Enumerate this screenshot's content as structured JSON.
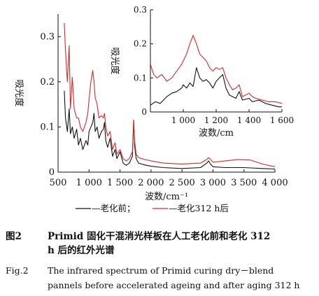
{
  "chart_data": [
    {
      "type": "line",
      "xlabel": "波数/cm⁻¹",
      "ylabel": "吸光度",
      "xlim": [
        500,
        4000
      ],
      "ylim": [
        0,
        0.35
      ],
      "xticks": [
        "500",
        "1 000",
        "1 500",
        "2 000",
        "2 500",
        "3 000",
        "3 500",
        "4 000"
      ],
      "yticks": [
        "0",
        "0.1",
        "0.2",
        "0.3"
      ],
      "grid": false,
      "legend_position": "bottom",
      "series": [
        {
          "name": "老化前",
          "color": "#111111",
          "points": [
            [
              600,
              0.18
            ],
            [
              620,
              0.12
            ],
            [
              650,
              0.09
            ],
            [
              680,
              0.14
            ],
            [
              700,
              0.085
            ],
            [
              730,
              0.1
            ],
            [
              760,
              0.075
            ],
            [
              800,
              0.095
            ],
            [
              830,
              0.06
            ],
            [
              860,
              0.075
            ],
            [
              900,
              0.05
            ],
            [
              950,
              0.07
            ],
            [
              980,
              0.06
            ],
            [
              1000,
              0.09
            ],
            [
              1030,
              0.1
            ],
            [
              1060,
              0.11
            ],
            [
              1080,
              0.13
            ],
            [
              1100,
              0.09
            ],
            [
              1130,
              0.1
            ],
            [
              1160,
              0.075
            ],
            [
              1200,
              0.09
            ],
            [
              1230,
              0.095
            ],
            [
              1250,
              0.11
            ],
            [
              1270,
              0.07
            ],
            [
              1300,
              0.055
            ],
            [
              1340,
              0.075
            ],
            [
              1380,
              0.035
            ],
            [
              1420,
              0.05
            ],
            [
              1450,
              0.03
            ],
            [
              1500,
              0.045
            ],
            [
              1550,
              0.02
            ],
            [
              1600,
              0.015
            ],
            [
              1650,
              0.02
            ],
            [
              1700,
              0.035
            ],
            [
              1720,
              0.115
            ],
            [
              1735,
              0.06
            ],
            [
              1760,
              0.03
            ],
            [
              1800,
              0.02
            ],
            [
              1900,
              0.016
            ],
            [
              2000,
              0.013
            ],
            [
              2200,
              0.01
            ],
            [
              2500,
              0.008
            ],
            [
              2800,
              0.01
            ],
            [
              2900,
              0.02
            ],
            [
              2930,
              0.025
            ],
            [
              2960,
              0.018
            ],
            [
              3000,
              0.012
            ],
            [
              3200,
              0.01
            ],
            [
              3500,
              0.01
            ],
            [
              3800,
              0.008
            ],
            [
              4000,
              0.007
            ]
          ]
        },
        {
          "name": "老化312 h后",
          "color": "#d42a2a",
          "points": [
            [
              600,
              0.33
            ],
            [
              620,
              0.27
            ],
            [
              650,
              0.2
            ],
            [
              680,
              0.28
            ],
            [
              700,
              0.14
            ],
            [
              730,
              0.21
            ],
            [
              760,
              0.14
            ],
            [
              800,
              0.12
            ],
            [
              830,
              0.12
            ],
            [
              860,
              0.1
            ],
            [
              900,
              0.09
            ],
            [
              950,
              0.11
            ],
            [
              980,
              0.13
            ],
            [
              1000,
              0.16
            ],
            [
              1030,
              0.2
            ],
            [
              1060,
              0.225
            ],
            [
              1080,
              0.2
            ],
            [
              1100,
              0.165
            ],
            [
              1130,
              0.15
            ],
            [
              1160,
              0.12
            ],
            [
              1200,
              0.125
            ],
            [
              1230,
              0.12
            ],
            [
              1250,
              0.13
            ],
            [
              1270,
              0.1
            ],
            [
              1300,
              0.08
            ],
            [
              1340,
              0.09
            ],
            [
              1380,
              0.05
            ],
            [
              1420,
              0.065
            ],
            [
              1450,
              0.04
            ],
            [
              1500,
              0.05
            ],
            [
              1550,
              0.03
            ],
            [
              1600,
              0.025
            ],
            [
              1650,
              0.03
            ],
            [
              1700,
              0.045
            ],
            [
              1720,
              0.115
            ],
            [
              1735,
              0.07
            ],
            [
              1760,
              0.04
            ],
            [
              1800,
              0.032
            ],
            [
              1900,
              0.028
            ],
            [
              2000,
              0.025
            ],
            [
              2200,
              0.02
            ],
            [
              2500,
              0.018
            ],
            [
              2800,
              0.02
            ],
            [
              2900,
              0.028
            ],
            [
              2930,
              0.032
            ],
            [
              2960,
              0.028
            ],
            [
              3000,
              0.022
            ],
            [
              3200,
              0.025
            ],
            [
              3400,
              0.028
            ],
            [
              3600,
              0.027
            ],
            [
              3800,
              0.018
            ],
            [
              4000,
              0.012
            ]
          ]
        }
      ]
    },
    {
      "type": "line",
      "inset": true,
      "xlabel": "波数/cm",
      "ylabel": "吸光度",
      "xlim": [
        800,
        1600
      ],
      "ylim": [
        0,
        0.3
      ],
      "xticks": [
        "1 000",
        "1 200",
        "1 400",
        "1 600"
      ],
      "yticks": [
        "0",
        "0.1",
        "0.2",
        "0.3"
      ],
      "grid": false,
      "series": [
        {
          "name": "老化前",
          "color": "#111111",
          "points": [
            [
              800,
              0.02
            ],
            [
              830,
              0.03
            ],
            [
              860,
              0.025
            ],
            [
              900,
              0.045
            ],
            [
              930,
              0.055
            ],
            [
              960,
              0.06
            ],
            [
              990,
              0.07
            ],
            [
              1000,
              0.08
            ],
            [
              1020,
              0.07
            ],
            [
              1040,
              0.085
            ],
            [
              1060,
              0.075
            ],
            [
              1080,
              0.13
            ],
            [
              1100,
              0.1
            ],
            [
              1120,
              0.09
            ],
            [
              1140,
              0.095
            ],
            [
              1160,
              0.085
            ],
            [
              1180,
              0.07
            ],
            [
              1200,
              0.09
            ],
            [
              1220,
              0.1
            ],
            [
              1240,
              0.11
            ],
            [
              1260,
              0.07
            ],
            [
              1280,
              0.05
            ],
            [
              1300,
              0.045
            ],
            [
              1320,
              0.04
            ],
            [
              1340,
              0.06
            ],
            [
              1360,
              0.035
            ],
            [
              1400,
              0.04
            ],
            [
              1420,
              0.03
            ],
            [
              1460,
              0.035
            ],
            [
              1500,
              0.025
            ],
            [
              1540,
              0.02
            ],
            [
              1580,
              0.015
            ],
            [
              1600,
              0.015
            ]
          ]
        },
        {
          "name": "老化312 h后",
          "color": "#d42a2a",
          "points": [
            [
              800,
              0.14
            ],
            [
              820,
              0.11
            ],
            [
              840,
              0.1
            ],
            [
              870,
              0.11
            ],
            [
              900,
              0.09
            ],
            [
              930,
              0.1
            ],
            [
              960,
              0.12
            ],
            [
              990,
              0.14
            ],
            [
              1000,
              0.15
            ],
            [
              1020,
              0.17
            ],
            [
              1040,
              0.2
            ],
            [
              1060,
              0.225
            ],
            [
              1080,
              0.2
            ],
            [
              1100,
              0.17
            ],
            [
              1120,
              0.16
            ],
            [
              1140,
              0.15
            ],
            [
              1160,
              0.13
            ],
            [
              1180,
              0.12
            ],
            [
              1200,
              0.13
            ],
            [
              1220,
              0.125
            ],
            [
              1240,
              0.13
            ],
            [
              1260,
              0.1
            ],
            [
              1280,
              0.08
            ],
            [
              1300,
              0.065
            ],
            [
              1320,
              0.07
            ],
            [
              1340,
              0.08
            ],
            [
              1360,
              0.045
            ],
            [
              1380,
              0.05
            ],
            [
              1400,
              0.055
            ],
            [
              1420,
              0.045
            ],
            [
              1440,
              0.04
            ],
            [
              1480,
              0.035
            ],
            [
              1520,
              0.03
            ],
            [
              1560,
              0.03
            ],
            [
              1600,
              0.025
            ]
          ]
        }
      ]
    }
  ],
  "legend": {
    "before_label": "—老化前；",
    "after_label": "—老化312 h后"
  },
  "caption": {
    "zh_num": "图2",
    "zh_line1": "Primid 固化干混消光样板在人工老化前和老化 312",
    "zh_line2": "h 后的红外光谱",
    "en_num": "Fig.2",
    "en_line1": "The infrared spectrum of Primid curing dry－blend",
    "en_line2": "pannels before accelerated ageing and after aging 312 h"
  }
}
